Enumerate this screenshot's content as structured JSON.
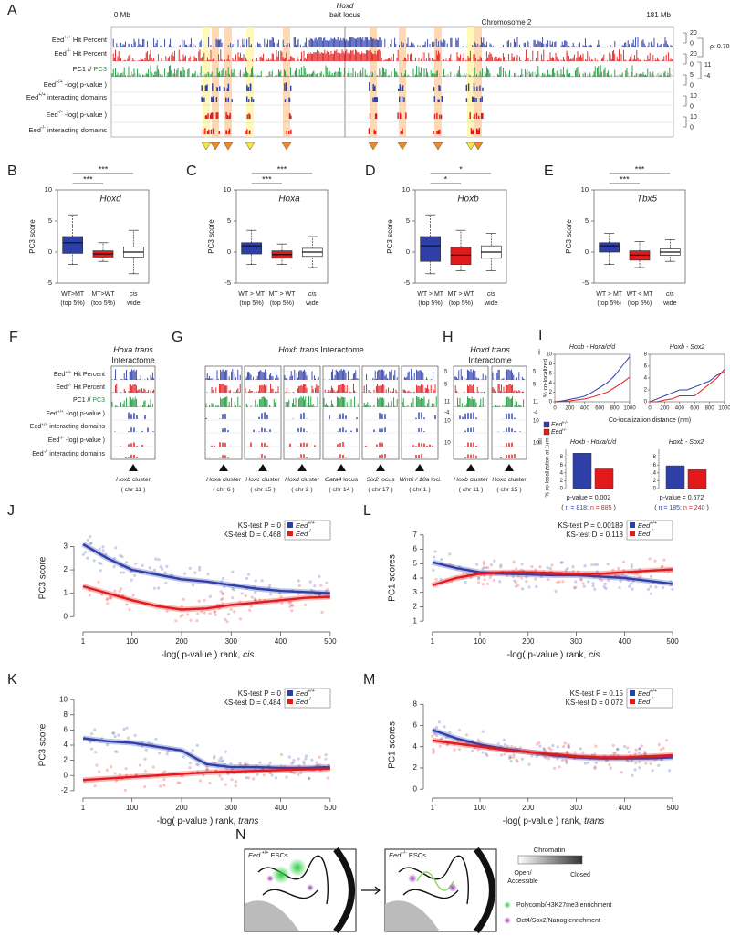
{
  "legend": [
    {
      "pre": "Eed",
      "sup": "+/+",
      "color": "#2e3fa8"
    },
    {
      "pre": "Eed",
      "sup": "-/-",
      "color": "#e31a1c"
    }
  ],
  "panel_a": {
    "label": "A",
    "start": "0 Mb",
    "end": "181 Mb",
    "gene": "Hoxd",
    "bait": "bait locus",
    "chrom": "Chromosome 2",
    "tracks": [
      {
        "pre": "Eed",
        "sup": "+/+",
        "post": " Hit Percent"
      },
      {
        "pre": "Eed",
        "sup": "-/-",
        "post": " Hit Percent"
      },
      {
        "pre": "PC1 // ",
        "green": "PC3"
      },
      {
        "pre": "Eed",
        "sup": "+/+",
        "post": " -log( p-value )"
      },
      {
        "pre": "Eed",
        "sup": "+/+",
        "post": " interacting domains"
      },
      {
        "pre": "Eed",
        "sup": "-/-",
        "post": " -log( p-value )"
      },
      {
        "pre": "Eed",
        "sup": "-/-",
        "post": " interacting domains"
      }
    ],
    "scale": [
      "20",
      "0",
      "20",
      "0",
      "5",
      "0",
      "10",
      "0",
      "10",
      "0"
    ],
    "rho": "ρ: 0.70",
    "pc1_scale": [
      "11",
      "-4"
    ]
  },
  "box_panels": [
    {
      "label": "B",
      "gene": "Hoxd",
      "ylabel": "PC3 score",
      "ylim": [
        -5,
        10
      ],
      "yticks": [
        -5,
        0,
        5,
        10
      ],
      "categories": [
        [
          "WT>MT",
          "(top 5%)"
        ],
        [
          "MT>WT",
          "(top 5%)"
        ],
        [
          "cis",
          "wide"
        ]
      ],
      "stars": [
        "***",
        "***"
      ],
      "boxes": [
        {
          "color": "#2e3fa8",
          "whislo": -2,
          "q1": -0.2,
          "med": 1.5,
          "q3": 2.5,
          "whishi": 6
        },
        {
          "color": "#e31a1c",
          "whislo": -1.5,
          "q1": -0.8,
          "med": -0.3,
          "q3": 0.2,
          "whishi": 1.5
        },
        {
          "color": "#ffffff",
          "whislo": -3.5,
          "q1": -0.8,
          "med": 0,
          "q3": 0.8,
          "whishi": 3.5
        }
      ]
    },
    {
      "label": "C",
      "gene": "Hoxa",
      "ylabel": "PC3 score",
      "ylim": [
        -5,
        10
      ],
      "yticks": [
        -5,
        0,
        5,
        10
      ],
      "categories": [
        [
          "WT > MT",
          "(top 5%)"
        ],
        [
          "MT > WT",
          "(top 5%)"
        ],
        [
          "cis",
          "wide"
        ]
      ],
      "stars": [
        "***",
        "***"
      ],
      "boxes": [
        {
          "color": "#2e3fa8",
          "whislo": -2,
          "q1": -0.3,
          "med": 1,
          "q3": 1.5,
          "whishi": 3.5
        },
        {
          "color": "#e31a1c",
          "whislo": -2,
          "q1": -1,
          "med": -0.4,
          "q3": 0.2,
          "whishi": 1.3
        },
        {
          "color": "#ffffff",
          "whislo": -2.5,
          "q1": -0.7,
          "med": 0,
          "q3": 0.6,
          "whishi": 2.5
        }
      ]
    },
    {
      "label": "D",
      "gene": "Hoxb",
      "ylabel": "PC3 score",
      "ylim": [
        -5,
        10
      ],
      "yticks": [
        -5,
        0,
        5,
        10
      ],
      "categories": [
        [
          "WT > MT",
          "(top 5%)"
        ],
        [
          "MT > WT",
          "(top 5%)"
        ],
        [
          "cis",
          "wide"
        ]
      ],
      "stars": [
        "*",
        "*"
      ],
      "boxes": [
        {
          "color": "#2e3fa8",
          "whislo": -3.5,
          "q1": -1.5,
          "med": 1,
          "q3": 2.5,
          "whishi": 6
        },
        {
          "color": "#e31a1c",
          "whislo": -3,
          "q1": -2,
          "med": -0.5,
          "q3": 0.8,
          "whishi": 3.5
        },
        {
          "color": "#ffffff",
          "whislo": -3,
          "q1": -1,
          "med": 0,
          "q3": 1,
          "whishi": 3
        }
      ]
    },
    {
      "label": "E",
      "gene": "Tbx5",
      "ylabel": "PC3 score",
      "ylim": [
        -5,
        10
      ],
      "yticks": [
        -5,
        0,
        5,
        10
      ],
      "categories": [
        [
          "WT > MT",
          "(top 5%)"
        ],
        [
          "WT < MT",
          "(top 5%)"
        ],
        [
          "cis",
          "wide"
        ]
      ],
      "stars": [
        "***",
        "***"
      ],
      "boxes": [
        {
          "color": "#2e3fa8",
          "whislo": -2,
          "q1": 0,
          "med": 1,
          "q3": 1.5,
          "whishi": 3
        },
        {
          "color": "#e31a1c",
          "whislo": -2.5,
          "q1": -1.3,
          "med": -0.5,
          "q3": 0.2,
          "whishi": 1.7
        },
        {
          "color": "#ffffff",
          "whislo": -1.5,
          "q1": -0.5,
          "med": 0,
          "q3": 0.5,
          "whishi": 2
        }
      ]
    }
  ],
  "panel_fgh": {
    "track_labels": [
      {
        "pre": "Eed",
        "sup": "+/+",
        "post": " Hit Percent"
      },
      {
        "pre": "Eed",
        "sup": "-/-",
        "post": " Hit Percent"
      },
      {
        "pre": "PC1 // ",
        "green": "PC3"
      },
      {
        "pre": "Eed",
        "sup": "+/+",
        "post": " -log( p-value )"
      },
      {
        "pre": "Eed",
        "sup": "+/+",
        "post": " interacting domains"
      },
      {
        "pre": "Eed",
        "sup": "-/-",
        "post": " -log( p-value )"
      },
      {
        "pre": "Eed",
        "sup": "-/-",
        "post": " interacting domains"
      }
    ],
    "groups": [
      {
        "label": "F",
        "title": {
          "em": "Hoxa trans"
        },
        "subtitle": "Interactome",
        "loci": [
          {
            "name": {
              "em": "Hoxb",
              "rest": " cluster"
            },
            "chr": "( chr 11 )"
          }
        ]
      },
      {
        "label": "G",
        "title": {
          "em": "Hoxb trans",
          "rest": " Interactome"
        },
        "loci": [
          {
            "name": {
              "em": "Hoxa",
              "rest": " cluster"
            },
            "chr": "( chr 6 )"
          },
          {
            "name": {
              "em": "Hoxc",
              "rest": " cluster"
            },
            "chr": "( chr 15 )"
          },
          {
            "name": {
              "em": "Hoxd",
              "rest": " cluster"
            },
            "chr": "( chr 2 )"
          },
          {
            "name": {
              "em": "Gata4",
              "rest": " locus"
            },
            "chr": "( chr 14 )"
          },
          {
            "name": {
              "em": "Six2",
              "rest": " locus"
            },
            "chr": "( chr 17 )"
          },
          {
            "name": {
              "em": "Wnt6 / 10a",
              "rest": " loci"
            },
            "chr": "( chr 1 )"
          }
        ],
        "scale": [
          "5",
          "5",
          "11",
          "-4",
          "10",
          "10"
        ]
      },
      {
        "label": "H",
        "title": {
          "em": "Hoxd trans"
        },
        "subtitle": "Interactome",
        "loci": [
          {
            "name": {
              "em": "Hoxb",
              "rest": " cluster"
            },
            "chr": "( chr 11 )"
          },
          {
            "name": {
              "em": "Hoxc",
              "rest": " cluster"
            },
            "chr": "( chr 15 )"
          }
        ],
        "scale": [
          "5",
          "5",
          "11",
          "-4",
          "10",
          "10"
        ]
      }
    ]
  },
  "panel_i": {
    "label": "I",
    "sub_i": "i",
    "sub_ii": "ii",
    "ylabel": "% co-localized",
    "xlabel": "Co-localization distance (nm)",
    "line_charts": [
      {
        "title": "Hoxb - Hoxa/c/d",
        "xlim": [
          0,
          1000
        ],
        "xticks": [
          0,
          200,
          400,
          600,
          800,
          1000
        ],
        "ylim": [
          0,
          10
        ],
        "yticks": [
          0,
          2,
          4,
          6,
          8,
          10
        ],
        "x": [
          0,
          100,
          200,
          300,
          400,
          500,
          600,
          700,
          800,
          900,
          1000
        ],
        "series": [
          {
            "color": "#2e3fa8",
            "values": [
              0,
              0.2,
              0.5,
              0.8,
              1.2,
              2,
              3,
              4,
              5.5,
              7.5,
              9.5
            ]
          },
          {
            "color": "#e31a1c",
            "values": [
              0,
              0.1,
              0.2,
              0.4,
              0.6,
              1,
              1.5,
              2,
              3,
              4,
              5.2
            ]
          }
        ]
      },
      {
        "title": "Hoxb - Sox2",
        "xlim": [
          0,
          1000
        ],
        "xticks": [
          0,
          200,
          400,
          600,
          800,
          1000
        ],
        "ylim": [
          0,
          8
        ],
        "yticks": [
          0,
          2,
          4,
          6,
          8
        ],
        "x": [
          0,
          100,
          200,
          300,
          400,
          500,
          600,
          700,
          800,
          900,
          1000
        ],
        "series": [
          {
            "color": "#2e3fa8",
            "values": [
              0,
              0.5,
              1,
              1.5,
              2,
              2,
              2.5,
              3,
              3.5,
              4.5,
              5
            ]
          },
          {
            "color": "#e31a1c",
            "values": [
              0,
              0,
              0.3,
              0.5,
              1,
              1,
              1,
              2,
              3,
              4,
              5.5
            ]
          }
        ]
      }
    ],
    "bar_ylabel": "% co-localization at 1um",
    "bar_charts": [
      {
        "title": "Hoxb - Hoxa/c/d",
        "ylim": [
          0,
          10
        ],
        "yticks": [
          0,
          2,
          4,
          6,
          8
        ],
        "values": [
          9,
          5
        ],
        "pvalue": "p-value = 0.002",
        "n": [
          "n = 818",
          "n = 885"
        ]
      },
      {
        "title": "Hoxb - Sox2",
        "ylim": [
          0,
          10
        ],
        "yticks": [
          0,
          2,
          4,
          6,
          8
        ],
        "values": [
          5.8,
          4.8
        ],
        "pvalue": "p-value = 0.672",
        "n": [
          "n = 185",
          "n = 240"
        ]
      }
    ]
  },
  "trend_panels": [
    {
      "label": "J",
      "ylabel": "PC3 score",
      "xlabel": {
        "pre": "-log( p-value ) rank, ",
        "em": "cis"
      },
      "ks": [
        "KS-test P = 0",
        "KS-test D = 0.468"
      ],
      "xlim": [
        -10,
        515
      ],
      "xticks": [
        1,
        100,
        200,
        300,
        400,
        500
      ],
      "ylim": [
        -0.5,
        3.8
      ],
      "yticks": [
        0,
        1,
        2,
        3
      ],
      "x": [
        1,
        50,
        100,
        150,
        200,
        250,
        300,
        350,
        400,
        450,
        500
      ],
      "series": [
        {
          "color": "#2e3fa8",
          "values": [
            3.1,
            2.5,
            2.0,
            1.8,
            1.6,
            1.5,
            1.35,
            1.2,
            1.1,
            1.05,
            1.0
          ]
        },
        {
          "color": "#e31a1c",
          "values": [
            1.3,
            1.0,
            0.7,
            0.45,
            0.3,
            0.35,
            0.5,
            0.6,
            0.7,
            0.8,
            0.85
          ]
        }
      ]
    },
    {
      "label": "K",
      "ylabel": "PC3 score",
      "xlabel": {
        "pre": "-log( p-value ) rank, ",
        "em": "trans"
      },
      "ks": [
        "KS-test P = 0",
        "KS-test D = 0.484"
      ],
      "xlim": [
        -10,
        515
      ],
      "xticks": [
        1,
        100,
        200,
        300,
        400,
        500
      ],
      "ylim": [
        -2.5,
        10.5
      ],
      "yticks": [
        -2,
        0,
        2,
        4,
        6,
        8,
        10
      ],
      "x": [
        1,
        50,
        100,
        150,
        200,
        250,
        300,
        350,
        400,
        450,
        500
      ],
      "series": [
        {
          "color": "#2e3fa8",
          "values": [
            4.9,
            4.5,
            4.3,
            3.8,
            3.3,
            1.5,
            1.1,
            1.1,
            1.0,
            1.0,
            1.1
          ]
        },
        {
          "color": "#e31a1c",
          "values": [
            -0.6,
            -0.4,
            -0.2,
            0,
            0.2,
            0.4,
            0.5,
            0.6,
            0.7,
            0.8,
            0.9
          ]
        }
      ]
    },
    {
      "label": "L",
      "ylabel": "PC1 scores",
      "xlabel": {
        "pre": "-log( p-value ) rank, ",
        "em": "cis"
      },
      "ks": [
        "KS-test P = 0.00189",
        "KS-test D = 0.118"
      ],
      "xlim": [
        -10,
        515
      ],
      "xticks": [
        1,
        100,
        200,
        300,
        400,
        500
      ],
      "ylim": [
        0.5,
        7.5
      ],
      "yticks": [
        1,
        2,
        3,
        4,
        5,
        6,
        7
      ],
      "x": [
        1,
        50,
        100,
        150,
        200,
        250,
        300,
        350,
        400,
        450,
        500
      ],
      "series": [
        {
          "color": "#2e3fa8",
          "values": [
            5.1,
            4.7,
            4.4,
            4.3,
            4.25,
            4.2,
            4.2,
            4.1,
            4.0,
            3.8,
            3.6
          ]
        },
        {
          "color": "#e31a1c",
          "values": [
            3.5,
            4.0,
            4.3,
            4.4,
            4.4,
            4.35,
            4.3,
            4.3,
            4.4,
            4.5,
            4.6
          ]
        }
      ]
    },
    {
      "label": "M",
      "ylabel": "PC1 scores",
      "xlabel": {
        "pre": "-log( p-value ) rank, ",
        "em": "trans"
      },
      "ks": [
        "KS-test P = 0.15",
        "KS-test D = 0.072"
      ],
      "xlim": [
        -10,
        515
      ],
      "xticks": [
        1,
        100,
        200,
        300,
        400,
        500
      ],
      "ylim": [
        -0.5,
        8.8
      ],
      "yticks": [
        0,
        2,
        4,
        6,
        8
      ],
      "x": [
        1,
        50,
        100,
        150,
        200,
        250,
        300,
        350,
        400,
        450,
        500
      ],
      "series": [
        {
          "color": "#2e3fa8",
          "values": [
            5.6,
            4.8,
            4.2,
            3.8,
            3.5,
            3.2,
            3.0,
            2.9,
            2.9,
            2.9,
            3.0
          ]
        },
        {
          "color": "#e31a1c",
          "values": [
            4.6,
            4.3,
            4.0,
            3.7,
            3.5,
            3.3,
            3.1,
            3.0,
            3.0,
            3.1,
            3.2
          ]
        }
      ]
    }
  ],
  "panel_n": {
    "label": "N",
    "left_title": {
      "pre": "Eed",
      "sup": " +/+",
      "post": " ESCs"
    },
    "right_title": {
      "pre": "Eed",
      "sup": " -/-",
      "post": " ESCs"
    },
    "chromatin": "Chromatin",
    "open": "Open/",
    "accessible": "Accessible",
    "closed": "Closed",
    "polycomb": "Polycomb/H3K27me3 enrichment",
    "oct4": "Oct4/Sox2/Nanog enrichment"
  }
}
